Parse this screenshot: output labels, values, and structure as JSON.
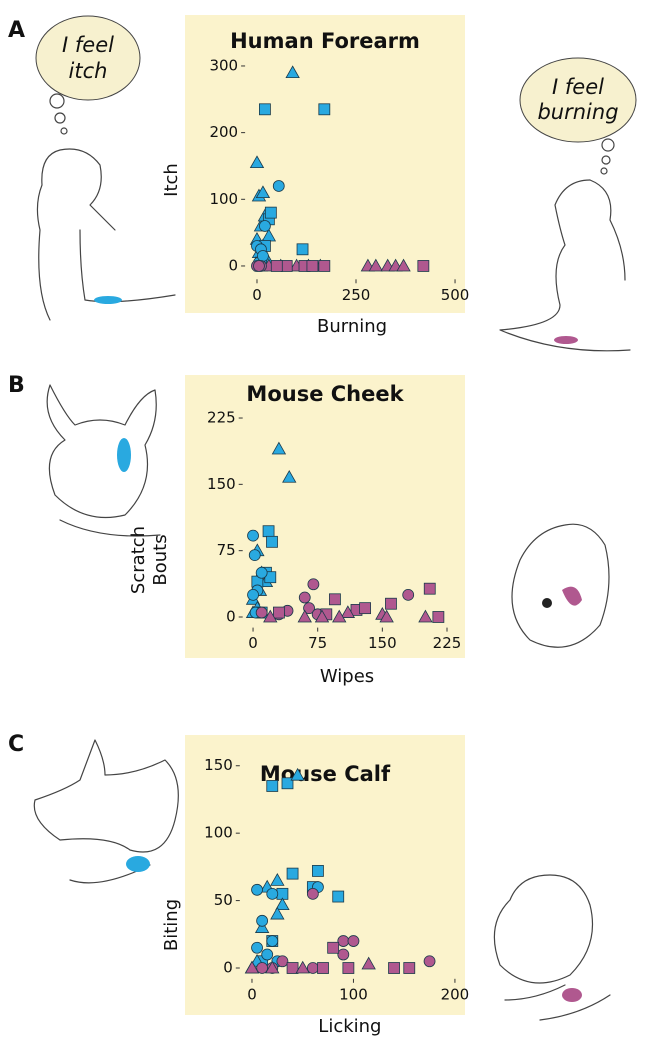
{
  "panels": [
    {
      "label": "A",
      "bubbles": [
        [
          "I feel",
          "itch"
        ],
        [
          "I feel",
          "burning"
        ]
      ]
    },
    {
      "label": "B"
    },
    {
      "label": "C"
    }
  ],
  "chart_data": [
    {
      "type": "scatter",
      "title": "Human Forearm",
      "xlabel": "Burning",
      "ylabel": [
        "Itch"
      ],
      "xlim": [
        -30,
        510
      ],
      "ylim": [
        -20,
        310
      ],
      "xticks": [
        0,
        250,
        500
      ],
      "yticks": [
        0,
        100,
        200,
        300
      ],
      "series": [
        {
          "color": "#29a9e0",
          "marker": "triangle",
          "x": [
            90,
            0,
            5,
            15,
            10,
            20,
            0,
            5,
            25,
            10,
            30,
            15
          ],
          "y": [
            290,
            155,
            105,
            110,
            60,
            75,
            40,
            20,
            10,
            0,
            45,
            30
          ]
        },
        {
          "color": "#29a9e0",
          "marker": "square",
          "x": [
            20,
            170,
            115,
            30,
            35,
            20,
            10
          ],
          "y": [
            235,
            235,
            25,
            70,
            80,
            30,
            5
          ]
        },
        {
          "color": "#29a9e0",
          "marker": "circle",
          "x": [
            55,
            20,
            0,
            10,
            5,
            15
          ],
          "y": [
            120,
            60,
            30,
            25,
            5,
            15
          ]
        },
        {
          "color": "#b0588f",
          "marker": "triangle",
          "x": [
            100,
            130,
            160,
            280,
            300,
            330,
            350,
            370,
            60,
            30
          ],
          "y": [
            0,
            0,
            0,
            0,
            0,
            0,
            0,
            0,
            0,
            0
          ]
        },
        {
          "color": "#b0588f",
          "marker": "square",
          "x": [
            170,
            120,
            140,
            75,
            420,
            50
          ],
          "y": [
            0,
            0,
            0,
            0,
            0,
            0
          ]
        },
        {
          "color": "#b0588f",
          "marker": "circle",
          "x": [
            0,
            10,
            5
          ],
          "y": [
            0,
            0,
            0
          ]
        }
      ]
    },
    {
      "type": "scatter",
      "title": "Mouse Cheek",
      "xlabel": "Wipes",
      "ylabel": [
        "Scratch",
        "Bouts"
      ],
      "xlim": [
        -12,
        230
      ],
      "ylim": [
        -12,
        230
      ],
      "xticks": [
        0,
        75,
        150,
        225
      ],
      "yticks": [
        0,
        75,
        150,
        225
      ],
      "series": [
        {
          "color": "#29a9e0",
          "marker": "triangle",
          "x": [
            30,
            42,
            5,
            10,
            0,
            5,
            15,
            0,
            8
          ],
          "y": [
            190,
            158,
            75,
            50,
            20,
            10,
            40,
            5,
            30
          ]
        },
        {
          "color": "#29a9e0",
          "marker": "square",
          "x": [
            18,
            22,
            15,
            5,
            10,
            20
          ],
          "y": [
            97,
            85,
            50,
            40,
            5,
            45
          ]
        },
        {
          "color": "#29a9e0",
          "marker": "circle",
          "x": [
            0,
            2,
            10,
            5,
            0,
            3
          ],
          "y": [
            92,
            70,
            50,
            30,
            25,
            5
          ]
        },
        {
          "color": "#b0588f",
          "marker": "circle",
          "x": [
            70,
            60,
            10,
            40,
            65,
            30,
            180,
            75
          ],
          "y": [
            37,
            22,
            5,
            7,
            10,
            3,
            25,
            3
          ]
        },
        {
          "color": "#b0588f",
          "marker": "square",
          "x": [
            95,
            120,
            130,
            160,
            205,
            215,
            30,
            85
          ],
          "y": [
            20,
            8,
            10,
            15,
            32,
            0,
            5,
            3
          ]
        },
        {
          "color": "#b0588f",
          "marker": "triangle",
          "x": [
            110,
            150,
            100,
            200,
            155,
            60,
            80,
            20
          ],
          "y": [
            5,
            3,
            0,
            0,
            0,
            0,
            0,
            0
          ]
        }
      ]
    },
    {
      "type": "scatter",
      "title": "Mouse Calf",
      "xlabel": "Licking",
      "ylabel": [
        "Biting"
      ],
      "xlim": [
        -12,
        205
      ],
      "ylim": [
        -8,
        155
      ],
      "xticks": [
        0,
        100,
        200
      ],
      "yticks": [
        0,
        50,
        100,
        150
      ],
      "series": [
        {
          "color": "#29a9e0",
          "marker": "square",
          "x": [
            20,
            35,
            65,
            60,
            85,
            40,
            30,
            10,
            20
          ],
          "y": [
            135,
            137,
            72,
            60,
            53,
            70,
            55,
            5,
            20
          ]
        },
        {
          "color": "#29a9e0",
          "marker": "triangle",
          "x": [
            45,
            25,
            15,
            30,
            25,
            10,
            5,
            0
          ],
          "y": [
            143,
            65,
            60,
            47,
            40,
            30,
            5,
            0
          ]
        },
        {
          "color": "#29a9e0",
          "marker": "circle",
          "x": [
            5,
            20,
            65,
            10,
            20,
            5,
            15,
            25
          ],
          "y": [
            58,
            55,
            60,
            35,
            20,
            15,
            10,
            5
          ]
        },
        {
          "color": "#b0588f",
          "marker": "circle",
          "x": [
            60,
            90,
            100,
            175,
            90,
            20,
            60,
            10,
            30
          ],
          "y": [
            55,
            20,
            20,
            5,
            10,
            0,
            0,
            0,
            5
          ]
        },
        {
          "color": "#b0588f",
          "marker": "square",
          "x": [
            80,
            95,
            140,
            155,
            70,
            40
          ],
          "y": [
            15,
            0,
            0,
            0,
            0,
            0
          ]
        },
        {
          "color": "#b0588f",
          "marker": "triangle",
          "x": [
            115,
            0,
            20,
            50
          ],
          "y": [
            3,
            0,
            0,
            0
          ]
        }
      ]
    }
  ]
}
